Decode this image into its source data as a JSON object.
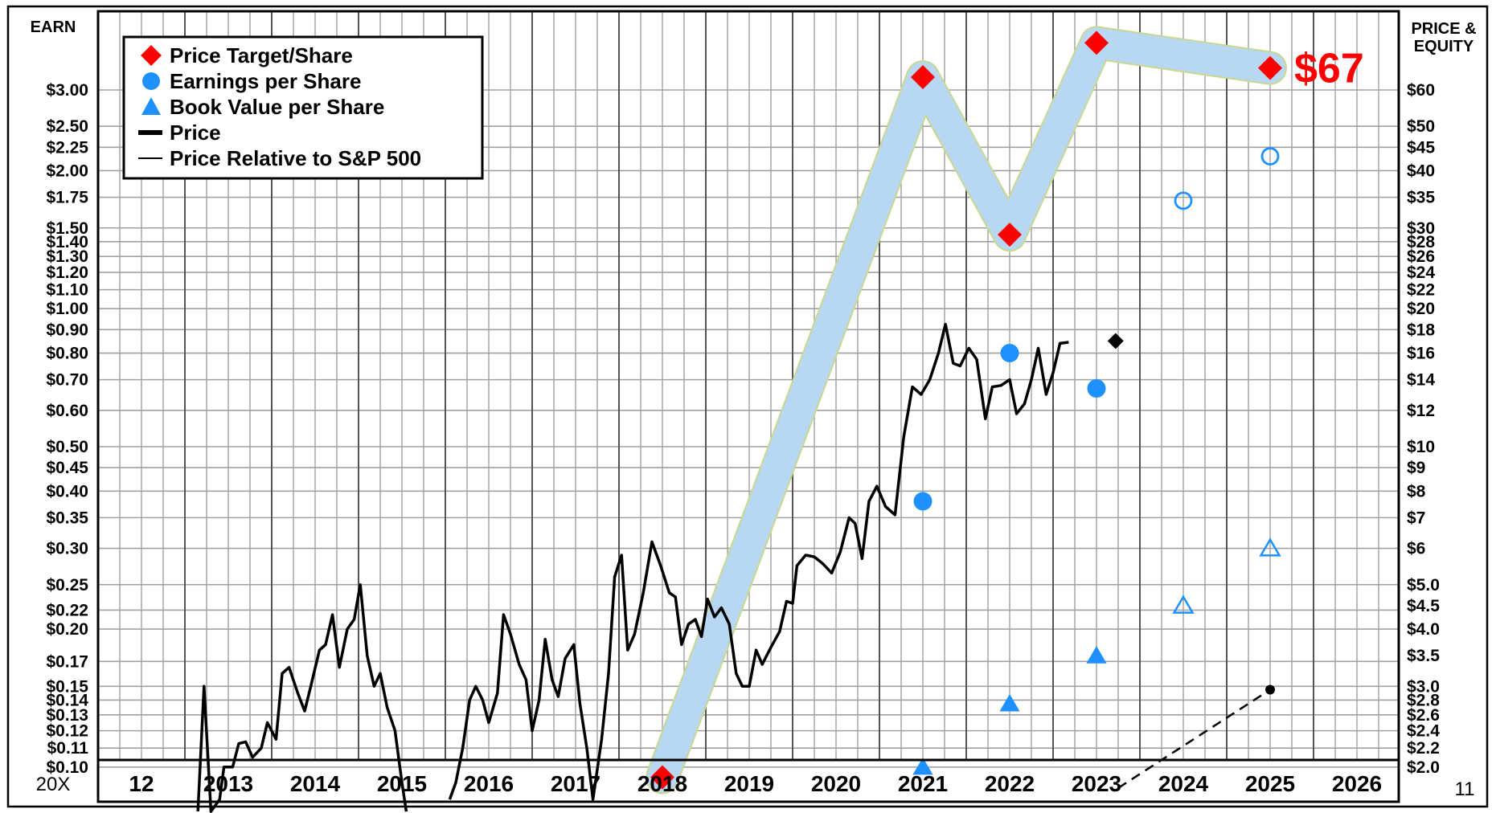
{
  "chart_data": {
    "type": "line",
    "left_axis_title": "EARN",
    "right_axis_title_line1": "PRICE &",
    "right_axis_title_line2": "EQUITY",
    "bottom_left_label": "20X",
    "bottom_right_label": "11",
    "x_categories": [
      "12",
      "2013",
      "2014",
      "2015",
      "2016",
      "2017",
      "2018",
      "2019",
      "2020",
      "2021",
      "2022",
      "2023",
      "2024",
      "2025",
      "2026"
    ],
    "left_axis_ticks": [
      {
        "label": "$3.00",
        "value": 3.0
      },
      {
        "label": "$2.50",
        "value": 2.5
      },
      {
        "label": "$2.25",
        "value": 2.25
      },
      {
        "label": "$2.00",
        "value": 2.0
      },
      {
        "label": "$1.75",
        "value": 1.75
      },
      {
        "label": "$1.50",
        "value": 1.5
      },
      {
        "label": "$1.40",
        "value": 1.4
      },
      {
        "label": "$1.30",
        "value": 1.3
      },
      {
        "label": "$1.20",
        "value": 1.2
      },
      {
        "label": "$1.10",
        "value": 1.1
      },
      {
        "label": "$1.00",
        "value": 1.0
      },
      {
        "label": "$0.90",
        "value": 0.9
      },
      {
        "label": "$0.80",
        "value": 0.8
      },
      {
        "label": "$0.70",
        "value": 0.7
      },
      {
        "label": "$0.60",
        "value": 0.6
      },
      {
        "label": "$0.50",
        "value": 0.5
      },
      {
        "label": "$0.45",
        "value": 0.45
      },
      {
        "label": "$0.40",
        "value": 0.4
      },
      {
        "label": "$0.35",
        "value": 0.35
      },
      {
        "label": "$0.30",
        "value": 0.3
      },
      {
        "label": "$0.25",
        "value": 0.25
      },
      {
        "label": "$0.22",
        "value": 0.22
      },
      {
        "label": "$0.20",
        "value": 0.2
      },
      {
        "label": "$0.17",
        "value": 0.17
      },
      {
        "label": "$0.15",
        "value": 0.15
      },
      {
        "label": "$0.14",
        "value": 0.14
      },
      {
        "label": "$0.13",
        "value": 0.13
      },
      {
        "label": "$0.12",
        "value": 0.12
      },
      {
        "label": "$0.11",
        "value": 0.11
      },
      {
        "label": "$0.10",
        "value": 0.1
      }
    ],
    "right_axis_ticks": [
      {
        "label": "$60",
        "value": 60
      },
      {
        "label": "$50",
        "value": 50
      },
      {
        "label": "$45",
        "value": 45
      },
      {
        "label": "$40",
        "value": 40
      },
      {
        "label": "$35",
        "value": 35
      },
      {
        "label": "$30",
        "value": 30
      },
      {
        "label": "$28",
        "value": 28
      },
      {
        "label": "$26",
        "value": 26
      },
      {
        "label": "$24",
        "value": 24
      },
      {
        "label": "$22",
        "value": 22
      },
      {
        "label": "$20",
        "value": 20
      },
      {
        "label": "$18",
        "value": 18
      },
      {
        "label": "$16",
        "value": 16
      },
      {
        "label": "$14",
        "value": 14
      },
      {
        "label": "$12",
        "value": 12
      },
      {
        "label": "$10",
        "value": 10
      },
      {
        "label": "$9",
        "value": 9
      },
      {
        "label": "$8",
        "value": 8
      },
      {
        "label": "$7",
        "value": 7
      },
      {
        "label": "$6",
        "value": 6
      },
      {
        "label": "$5.0",
        "value": 5.0
      },
      {
        "label": "$4.5",
        "value": 4.5
      },
      {
        "label": "$4.0",
        "value": 4.0
      },
      {
        "label": "$3.5",
        "value": 3.5
      },
      {
        "label": "$3.0",
        "value": 3.0
      },
      {
        "label": "$2.8",
        "value": 2.8
      },
      {
        "label": "$2.6",
        "value": 2.6
      },
      {
        "label": "$2.4",
        "value": 2.4
      },
      {
        "label": "$2.2",
        "value": 2.2
      },
      {
        "label": "$2.0",
        "value": 2.0
      }
    ],
    "legend": {
      "price_target": "Price Target/Share",
      "eps": "Earnings per Share",
      "book_value": "Book Value per Share",
      "price": "Price",
      "relative": "Price Relative to S&P 500"
    },
    "target_label": "$67",
    "colors": {
      "target": "#ff0000",
      "eps": "#1e90ff",
      "band": "#b8d7f2",
      "band_edge": "#c8d890",
      "grid": "#a0a0a0",
      "price": "#000000"
    },
    "price_targets": [
      {
        "x": 2018.5,
        "price": 1.9
      },
      {
        "x": 2021.5,
        "price": 64
      },
      {
        "x": 2022.5,
        "price": 29
      },
      {
        "x": 2023.5,
        "price": 76
      },
      {
        "x": 2025.5,
        "price": 67
      }
    ],
    "eps_actual": [
      {
        "x": 2021.5,
        "eps": 0.38
      },
      {
        "x": 2022.5,
        "eps": 0.8
      },
      {
        "x": 2023.5,
        "eps": 0.67
      }
    ],
    "eps_estimate": [
      {
        "x": 2024.5,
        "eps": 1.72
      },
      {
        "x": 2025.5,
        "eps": 2.15
      }
    ],
    "book_actual": [
      {
        "x": 2021.5,
        "bv": 2.0
      },
      {
        "x": 2022.5,
        "bv": 2.75
      },
      {
        "x": 2023.5,
        "bv": 3.5
      }
    ],
    "book_estimate": [
      {
        "x": 2024.5,
        "bv": 4.5
      },
      {
        "x": 2025.5,
        "bv": 6.0
      }
    ],
    "latest_price": {
      "x": 2023.72,
      "price": 17.0
    },
    "relative_projection": [
      {
        "x": 2023.75,
        "price": 1.8
      },
      {
        "x": 2025.5,
        "price": 2.95
      }
    ],
    "price_series": [
      [
        2013.15,
        1.6
      ],
      [
        2013.22,
        3.0
      ],
      [
        2013.3,
        1.6
      ],
      [
        2013.4,
        1.7
      ],
      [
        2013.45,
        2.0
      ],
      [
        2013.55,
        2.0
      ],
      [
        2013.62,
        2.25
      ],
      [
        2013.7,
        2.27
      ],
      [
        2013.78,
        2.1
      ],
      [
        2013.88,
        2.2
      ],
      [
        2013.95,
        2.5
      ],
      [
        2014.05,
        2.3
      ],
      [
        2014.12,
        3.2
      ],
      [
        2014.2,
        3.3
      ],
      [
        2014.3,
        2.9
      ],
      [
        2014.38,
        2.65
      ],
      [
        2014.45,
        3.0
      ],
      [
        2014.55,
        3.6
      ],
      [
        2014.62,
        3.7
      ],
      [
        2014.7,
        4.3
      ],
      [
        2014.78,
        3.3
      ],
      [
        2014.87,
        4.0
      ],
      [
        2014.95,
        4.2
      ],
      [
        2015.02,
        5.0
      ],
      [
        2015.1,
        3.5
      ],
      [
        2015.18,
        3.0
      ],
      [
        2015.25,
        3.2
      ],
      [
        2015.33,
        2.7
      ],
      [
        2015.42,
        2.4
      ],
      [
        2015.5,
        1.85
      ],
      [
        2015.55,
        1.6
      ]
    ],
    "price_series_2": [
      [
        2016.05,
        1.7
      ],
      [
        2016.12,
        1.85
      ],
      [
        2016.2,
        2.2
      ],
      [
        2016.28,
        2.8
      ],
      [
        2016.35,
        3.0
      ],
      [
        2016.43,
        2.8
      ],
      [
        2016.5,
        2.5
      ],
      [
        2016.6,
        2.9
      ],
      [
        2016.67,
        4.3
      ],
      [
        2016.75,
        3.9
      ],
      [
        2016.85,
        3.35
      ],
      [
        2016.93,
        3.1
      ],
      [
        2017.0,
        2.4
      ],
      [
        2017.08,
        2.8
      ],
      [
        2017.15,
        3.8
      ],
      [
        2017.23,
        3.1
      ],
      [
        2017.3,
        2.85
      ],
      [
        2017.38,
        3.45
      ],
      [
        2017.48,
        3.7
      ],
      [
        2017.55,
        2.75
      ],
      [
        2017.63,
        2.2
      ],
      [
        2017.7,
        1.7
      ],
      [
        2017.8,
        2.3
      ],
      [
        2017.88,
        3.2
      ],
      [
        2017.95,
        5.2
      ],
      [
        2018.03,
        5.8
      ],
      [
        2018.1,
        3.6
      ],
      [
        2018.18,
        3.9
      ],
      [
        2018.28,
        4.8
      ],
      [
        2018.38,
        6.2
      ],
      [
        2018.48,
        5.5
      ],
      [
        2018.58,
        4.8
      ],
      [
        2018.65,
        4.7
      ],
      [
        2018.72,
        3.7
      ],
      [
        2018.8,
        4.1
      ],
      [
        2018.88,
        4.2
      ],
      [
        2018.95,
        3.85
      ],
      [
        2019.02,
        4.65
      ],
      [
        2019.1,
        4.25
      ],
      [
        2019.18,
        4.45
      ],
      [
        2019.27,
        4.1
      ],
      [
        2019.35,
        3.2
      ],
      [
        2019.42,
        3.0
      ],
      [
        2019.5,
        3.0
      ],
      [
        2019.58,
        3.6
      ],
      [
        2019.65,
        3.35
      ],
      [
        2019.75,
        3.65
      ],
      [
        2019.85,
        3.95
      ],
      [
        2019.93,
        4.6
      ],
      [
        2020.0,
        4.55
      ],
      [
        2020.05,
        5.5
      ],
      [
        2020.15,
        5.8
      ],
      [
        2020.25,
        5.75
      ],
      [
        2020.35,
        5.55
      ],
      [
        2020.45,
        5.3
      ],
      [
        2020.55,
        5.9
      ],
      [
        2020.65,
        7.0
      ],
      [
        2020.72,
        6.8
      ],
      [
        2020.8,
        5.7
      ],
      [
        2020.88,
        7.6
      ],
      [
        2020.97,
        8.2
      ],
      [
        2021.07,
        7.4
      ],
      [
        2021.18,
        7.1
      ],
      [
        2021.28,
        10.5
      ],
      [
        2021.38,
        13.5
      ],
      [
        2021.48,
        13.0
      ],
      [
        2021.58,
        14.0
      ],
      [
        2021.68,
        16.0
      ],
      [
        2021.76,
        18.5
      ],
      [
        2021.85,
        15.2
      ],
      [
        2021.93,
        15.0
      ],
      [
        2022.03,
        16.4
      ],
      [
        2022.12,
        15.5
      ],
      [
        2022.22,
        11.5
      ],
      [
        2022.3,
        13.5
      ],
      [
        2022.4,
        13.6
      ],
      [
        2022.5,
        14.0
      ],
      [
        2022.58,
        11.8
      ],
      [
        2022.67,
        12.4
      ],
      [
        2022.75,
        14.0
      ],
      [
        2022.83,
        16.4
      ],
      [
        2022.92,
        13.0
      ],
      [
        2023.0,
        14.5
      ],
      [
        2023.08,
        16.8
      ],
      [
        2023.18,
        16.9
      ]
    ]
  }
}
